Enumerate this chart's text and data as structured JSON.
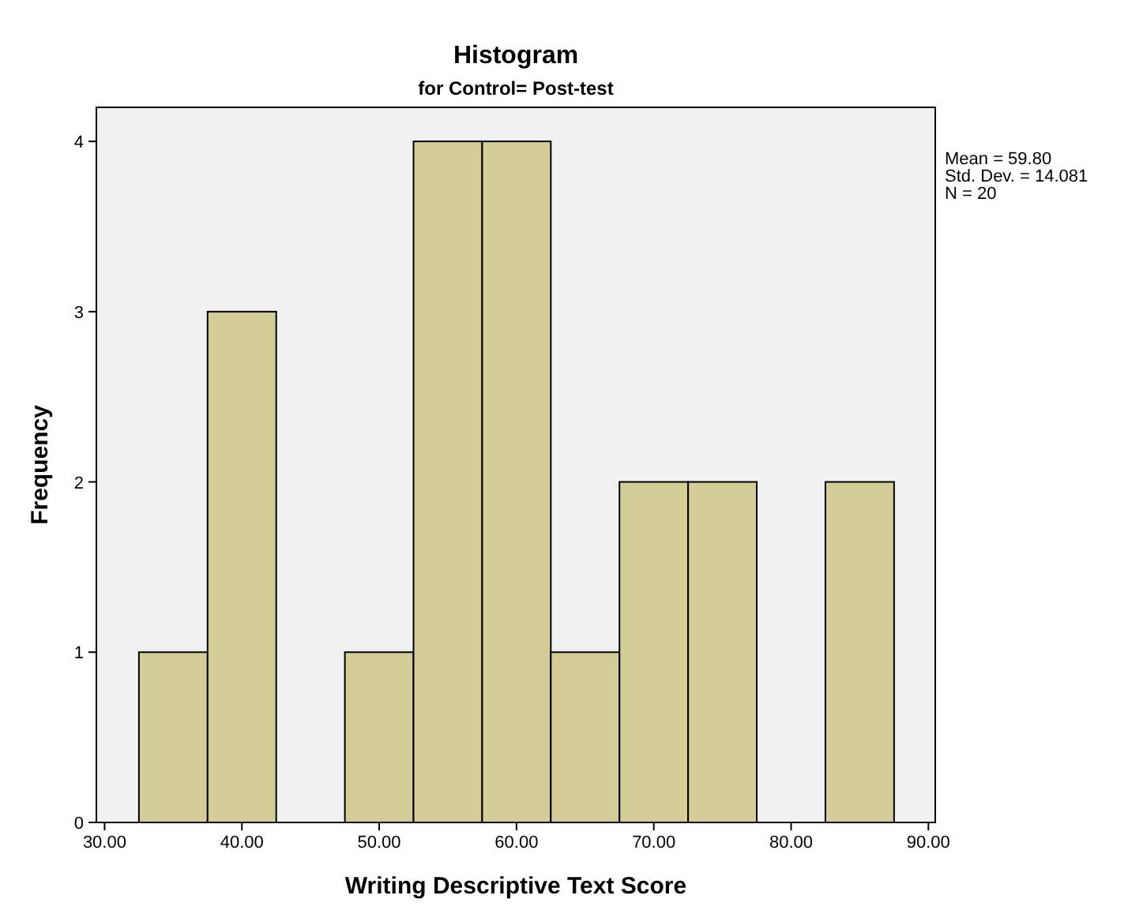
{
  "chart_data": {
    "type": "histogram",
    "title": "Histogram",
    "subtitle": "for Control= Post-test",
    "xlabel": "Writing Descriptive Text Score",
    "ylabel": "Frequency",
    "bins": [
      32.5,
      37.5,
      42.5,
      47.5,
      52.5,
      57.5,
      62.5,
      67.5,
      72.5,
      77.5,
      82.5,
      87.5
    ],
    "values": [
      1,
      3,
      0,
      1,
      4,
      4,
      1,
      2,
      2,
      0,
      2
    ],
    "color": "#d3ce97",
    "xlim": [
      29.4,
      90.5
    ],
    "xticks": [
      {
        "value": 30,
        "label": "30.00"
      },
      {
        "value": 40,
        "label": "40.00"
      },
      {
        "value": 50,
        "label": "50.00"
      },
      {
        "value": 60,
        "label": "60.00"
      },
      {
        "value": 70,
        "label": "70.00"
      },
      {
        "value": 80,
        "label": "80.00"
      },
      {
        "value": 90,
        "label": "90.00"
      }
    ],
    "ylim": [
      0,
      4.2
    ],
    "yticks": [
      0,
      1,
      2,
      3,
      4
    ],
    "annotations": [
      "Mean = 59.80",
      "Std. Dev. = 14.081",
      "N = 20"
    ]
  }
}
